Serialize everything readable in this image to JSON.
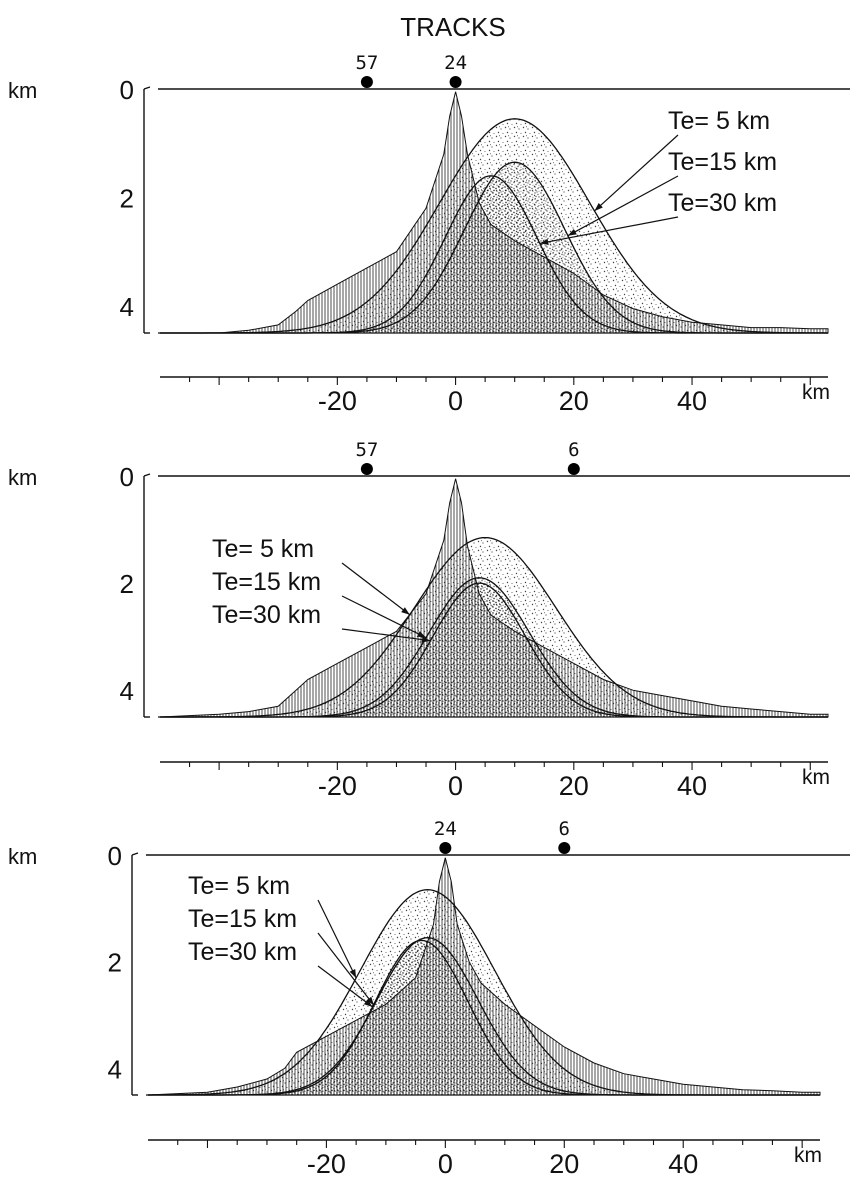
{
  "figure": {
    "title": "TRACKS"
  },
  "chart_data": [
    {
      "type": "area",
      "panel": "top",
      "tracks": [
        {
          "label": "57",
          "x": -15
        },
        {
          "label": "24",
          "x": 0
        }
      ],
      "y_unit": "km",
      "x_unit": "km",
      "yticks": [
        0,
        2,
        4
      ],
      "xticks": [
        -20,
        0,
        20,
        40
      ],
      "xlim": [
        -50,
        63
      ],
      "ylim": [
        0,
        4.5
      ],
      "topography": {
        "x": [
          -50,
          -40,
          -35,
          -30,
          -27,
          -25,
          -20,
          -15,
          -10,
          -5,
          -2,
          -1,
          0,
          1,
          2,
          4,
          6,
          10,
          15,
          20,
          25,
          30,
          35,
          40,
          45,
          50,
          55,
          60,
          63
        ],
        "y": [
          4.5,
          4.5,
          4.45,
          4.35,
          4.1,
          3.9,
          3.6,
          3.3,
          3.0,
          2.2,
          1.2,
          0.5,
          0.05,
          0.5,
          1.2,
          2.1,
          2.5,
          2.8,
          3.1,
          3.4,
          3.8,
          4.05,
          4.2,
          4.3,
          4.35,
          4.4,
          4.4,
          4.42,
          4.42
        ]
      },
      "series": [
        {
          "name": "Te= 5 km",
          "peak_x": 10,
          "peak_depth": 0.55,
          "width": 18
        },
        {
          "name": "Te=15 km",
          "peak_x": 10,
          "peak_depth": 1.35,
          "width": 12
        },
        {
          "name": "Te=30 km",
          "peak_x": 6,
          "peak_depth": 1.6,
          "width": 11
        }
      ],
      "legend_position": "top-right"
    },
    {
      "type": "area",
      "panel": "middle",
      "tracks": [
        {
          "label": "57",
          "x": -15
        },
        {
          "label": "6",
          "x": 20
        }
      ],
      "y_unit": "km",
      "x_unit": "km",
      "yticks": [
        0,
        2,
        4
      ],
      "xticks": [
        -20,
        0,
        20,
        40
      ],
      "xlim": [
        -50,
        63
      ],
      "ylim": [
        0,
        4.5
      ],
      "topography": {
        "x": [
          -50,
          -40,
          -35,
          -30,
          -27,
          -25,
          -20,
          -15,
          -10,
          -5,
          -2,
          -1,
          0,
          1,
          2,
          4,
          6,
          10,
          15,
          20,
          25,
          30,
          35,
          40,
          45,
          50,
          55,
          60,
          63
        ],
        "y": [
          4.5,
          4.45,
          4.4,
          4.3,
          4.0,
          3.8,
          3.5,
          3.2,
          2.9,
          2.2,
          1.2,
          0.5,
          0.05,
          0.5,
          1.3,
          2.2,
          2.6,
          2.9,
          3.2,
          3.5,
          3.8,
          4.0,
          4.1,
          4.2,
          4.3,
          4.35,
          4.4,
          4.45,
          4.45
        ]
      },
      "series": [
        {
          "name": "Te= 5 km",
          "peak_x": 5,
          "peak_depth": 1.15,
          "width": 17
        },
        {
          "name": "Te=15 km",
          "peak_x": 4,
          "peak_depth": 1.9,
          "width": 12
        },
        {
          "name": "Te=30 km",
          "peak_x": 4,
          "peak_depth": 2.0,
          "width": 11
        }
      ],
      "legend_position": "left"
    },
    {
      "type": "area",
      "panel": "bottom",
      "tracks": [
        {
          "label": "24",
          "x": 0
        },
        {
          "label": "6",
          "x": 20
        }
      ],
      "y_unit": "km",
      "x_unit": "km",
      "yticks": [
        0,
        2,
        4
      ],
      "xticks": [
        -20,
        0,
        20,
        40
      ],
      "xlim": [
        -50,
        63
      ],
      "ylim": [
        0,
        4.5
      ],
      "topography": {
        "x": [
          -50,
          -40,
          -35,
          -30,
          -27,
          -25,
          -20,
          -15,
          -10,
          -5,
          -2,
          -1,
          0,
          1,
          2,
          4,
          6,
          10,
          15,
          20,
          25,
          30,
          35,
          40,
          45,
          50,
          55,
          60,
          63
        ],
        "y": [
          4.5,
          4.45,
          4.35,
          4.2,
          4.0,
          3.7,
          3.4,
          3.1,
          2.8,
          2.3,
          1.3,
          0.5,
          0.05,
          0.5,
          1.3,
          2.0,
          2.4,
          2.8,
          3.2,
          3.6,
          3.9,
          4.1,
          4.2,
          4.3,
          4.35,
          4.4,
          4.42,
          4.45,
          4.45
        ]
      },
      "series": [
        {
          "name": "Te= 5 km",
          "peak_x": -3,
          "peak_depth": 0.65,
          "width": 16
        },
        {
          "name": "Te=15 km",
          "peak_x": -3,
          "peak_depth": 1.55,
          "width": 12
        },
        {
          "name": "Te=30 km",
          "peak_x": -4,
          "peak_depth": 1.6,
          "width": 11
        }
      ],
      "legend_position": "left"
    }
  ]
}
